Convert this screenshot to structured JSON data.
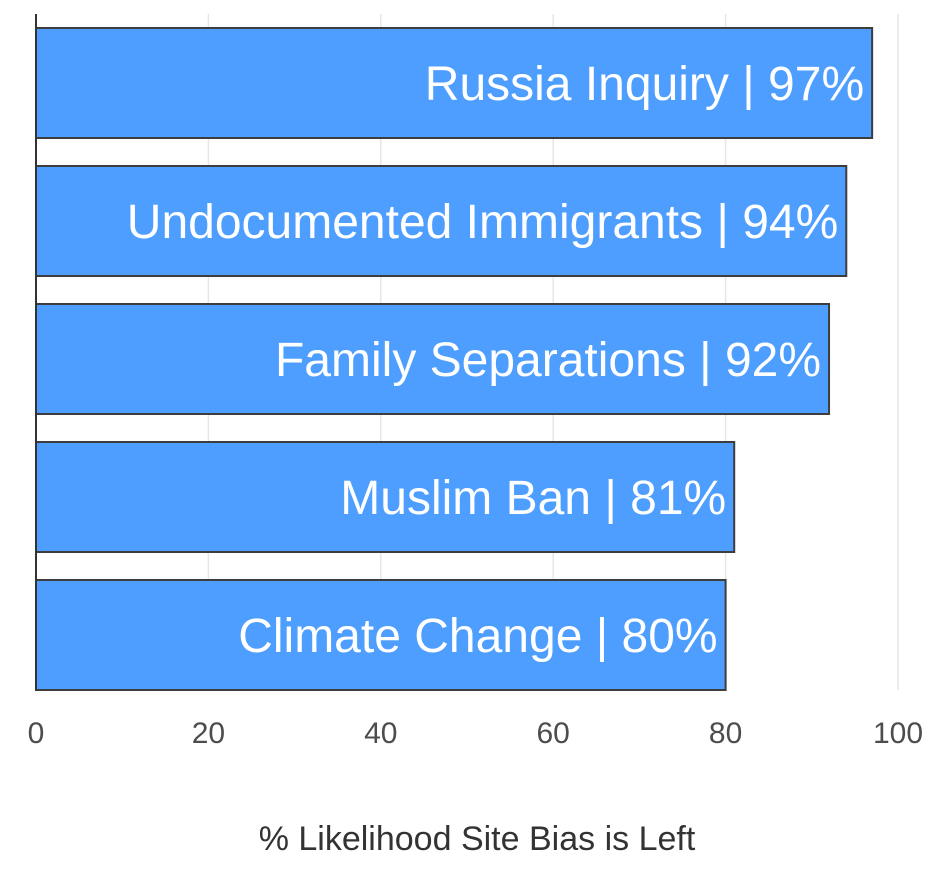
{
  "chart_data": {
    "type": "bar",
    "orientation": "horizontal",
    "categories": [
      "Russia Inquiry",
      "Undocumented Immigrants",
      "Family Separations",
      "Muslim Ban",
      "Climate Change"
    ],
    "values": [
      97,
      94,
      92,
      81,
      80
    ],
    "bar_labels": [
      "Russia Inquiry | 97%",
      "Undocumented Immigrants | 94%",
      "Family Separations | 92%",
      "Muslim Ban | 81%",
      "Climate Change | 80%"
    ],
    "xlabel": "% Likelihood Site Bias is Left",
    "xlim": [
      0,
      100
    ],
    "xticks": [
      0,
      20,
      40,
      60,
      80,
      100
    ],
    "grid": true,
    "legend": "none",
    "bar_color": "#4d9eff"
  }
}
